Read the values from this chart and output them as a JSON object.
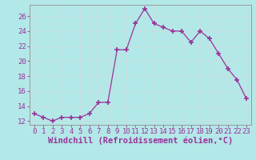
{
  "hours": [
    0,
    1,
    2,
    3,
    4,
    5,
    6,
    7,
    8,
    9,
    10,
    11,
    12,
    13,
    14,
    15,
    16,
    17,
    18,
    19,
    20,
    21,
    22,
    23
  ],
  "windchill": [
    13,
    12.5,
    12,
    12.5,
    12.5,
    12.5,
    13,
    14.5,
    14.5,
    21.5,
    21.5,
    25,
    27,
    25,
    24.5,
    24,
    24,
    22.5,
    24,
    23,
    21,
    19,
    17.5,
    15
  ],
  "line_color": "#993399",
  "marker": "+",
  "marker_size": 4,
  "bg_color": "#b3e8e8",
  "grid_color": "#c8dede",
  "title": "",
  "xlabel": "Windchill (Refroidissement éolien,°C)",
  "xlabel_color": "#993399",
  "ylabel": "",
  "ylim": [
    11.5,
    27.5
  ],
  "yticks": [
    12,
    14,
    16,
    18,
    20,
    22,
    24,
    26
  ],
  "xticks": [
    0,
    1,
    2,
    3,
    4,
    5,
    6,
    7,
    8,
    9,
    10,
    11,
    12,
    13,
    14,
    15,
    16,
    17,
    18,
    19,
    20,
    21,
    22,
    23
  ],
  "tick_color": "#993399",
  "axis_color": "#999999",
  "font_size": 6.5,
  "xlabel_fontsize": 7.5
}
